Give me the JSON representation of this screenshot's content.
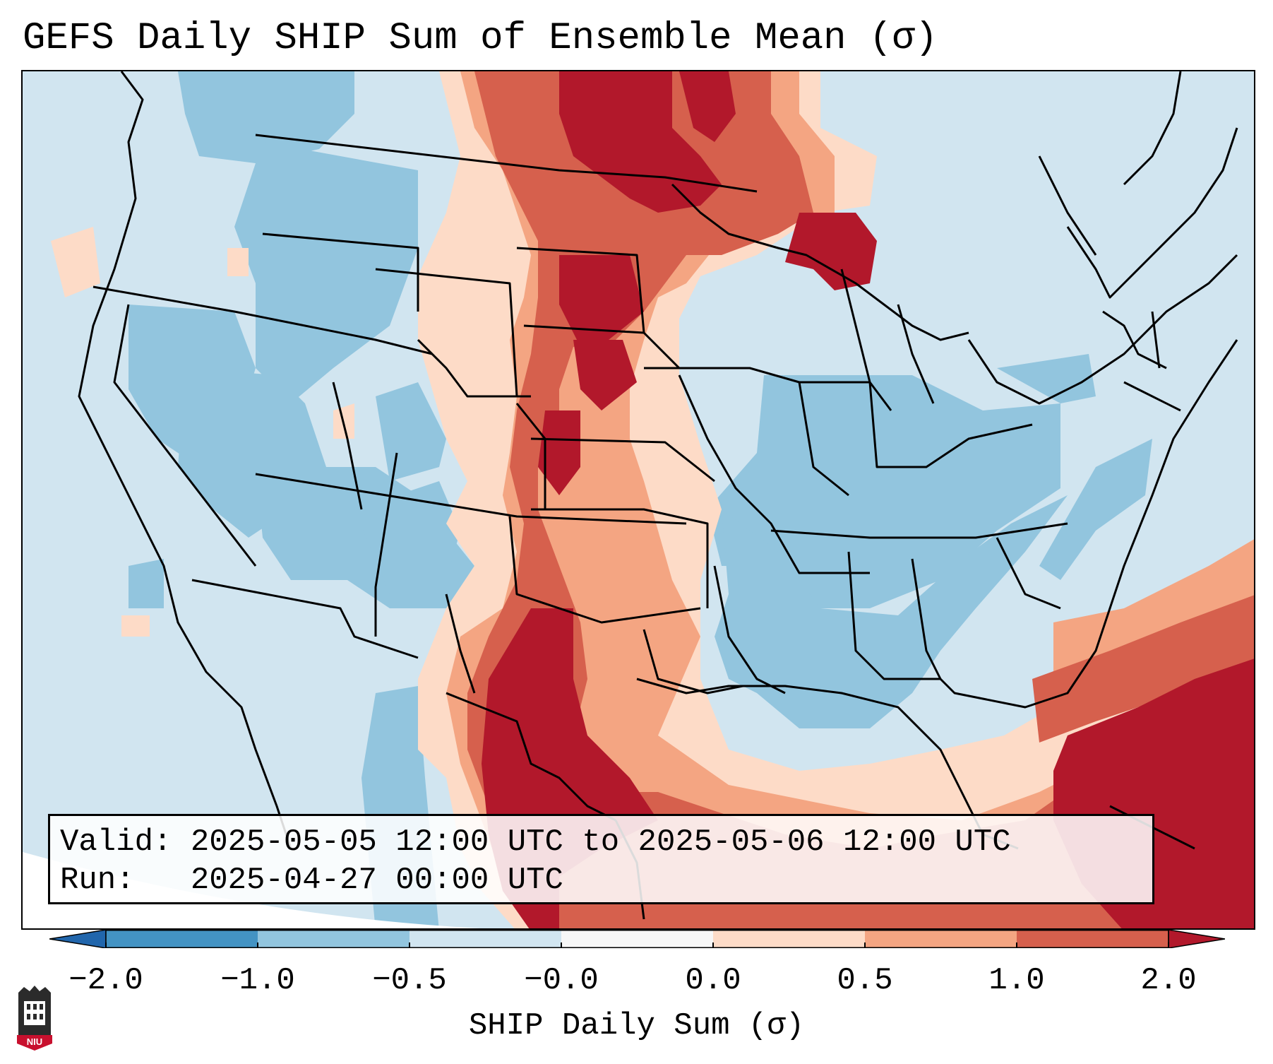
{
  "title": "GEFS Daily SHIP Sum of Ensemble Mean (σ)",
  "info": {
    "valid_label": "Valid:",
    "valid_value": "2025-05-05 12:00 UTC to 2025-05-06 12:00 UTC",
    "run_label": "Run:",
    "run_value": "2025-04-27 00:00 UTC"
  },
  "colorbar": {
    "label": "SHIP Daily Sum (σ)",
    "ticks": [
      "−2.0",
      "−1.0",
      "−0.5",
      "−0.0",
      "0.0",
      "0.5",
      "1.0",
      "2.0"
    ],
    "bins": [
      {
        "range": "< -2.0",
        "color": "#2166ac"
      },
      {
        "range": "-2.0 to -1.0",
        "color": "#4393c3"
      },
      {
        "range": "-1.0 to -0.5",
        "color": "#92c5de"
      },
      {
        "range": "-0.5 to -0.0",
        "color": "#d1e5f0"
      },
      {
        "range": "-0.0 to 0.0",
        "color": "#f7f7f7"
      },
      {
        "range": "0.0 to 0.5",
        "color": "#fddbc7"
      },
      {
        "range": "0.5 to 1.0",
        "color": "#f4a582"
      },
      {
        "range": "1.0 to 2.0",
        "color": "#d6604d"
      },
      {
        "range": "> 2.0",
        "color": "#b2182b"
      }
    ]
  },
  "logo": {
    "text": "NIU",
    "color": "#c8102e"
  }
}
